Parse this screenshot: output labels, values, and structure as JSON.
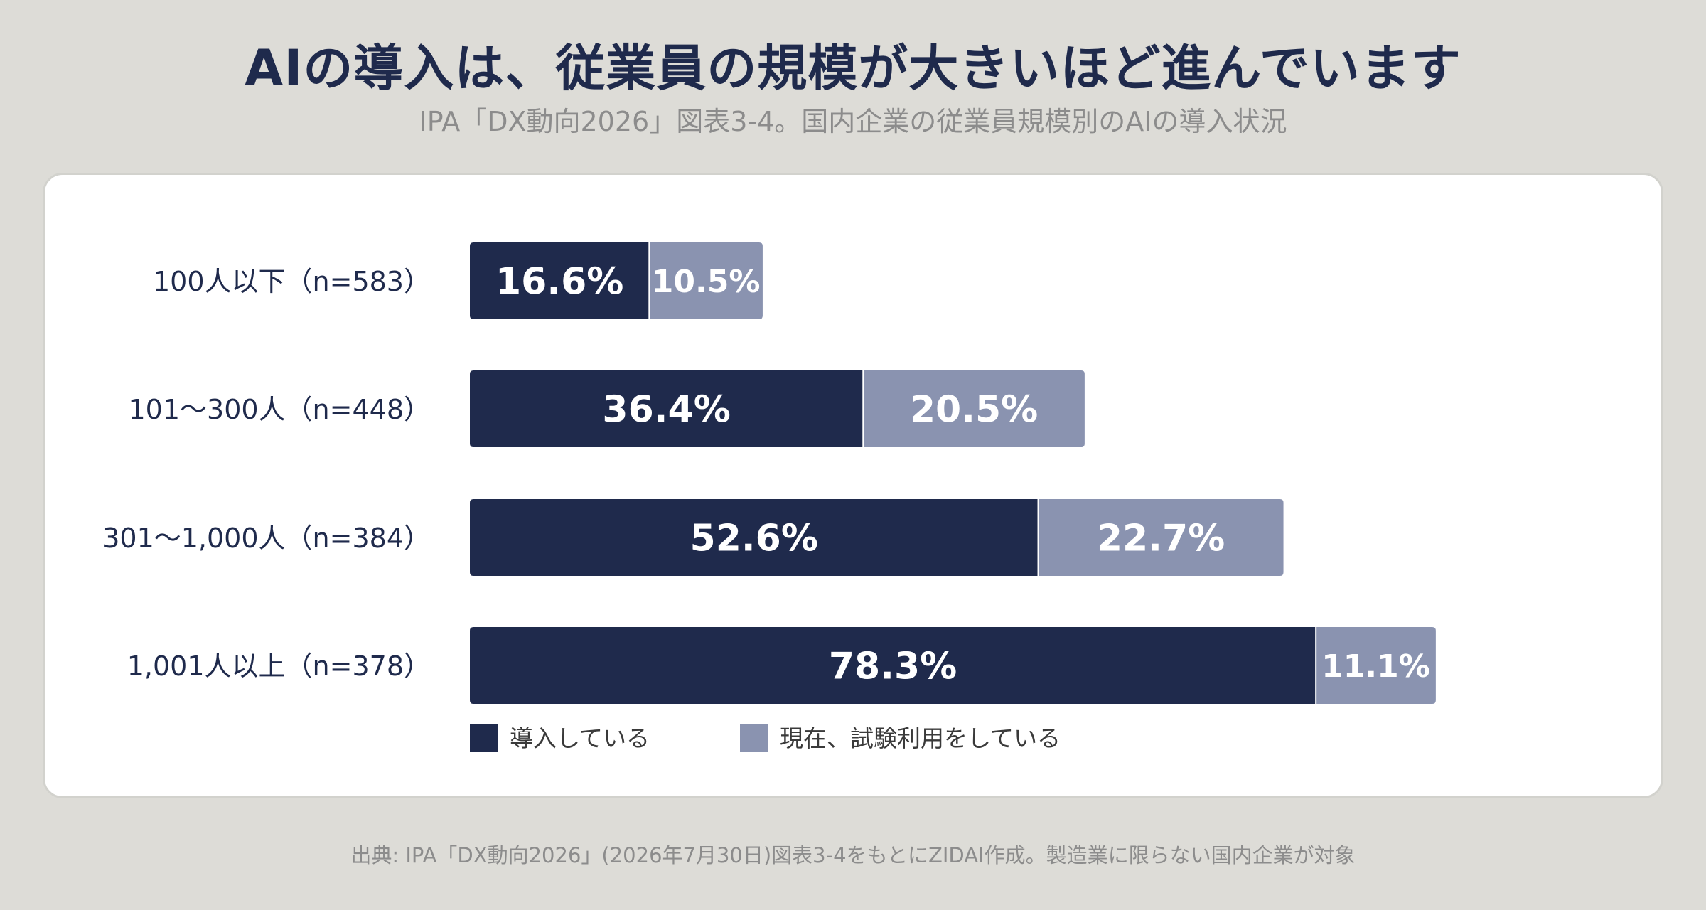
{
  "title": "AIの導入は、従業員の規模が大きいほど進んでいます",
  "subtitle": "IPA「DX動向2026」図表3-4。国内企業の従業員規模別のAIの導入状況",
  "source": "出典: IPA「DX動向2026」(2026年7月30日)図表3-4をもとにZIDAI作成。製造業に限らない国内企業が対象",
  "colors": {
    "background": "#dddcd7",
    "card": "#ffffff",
    "title": "#1f2a4c",
    "series_1": "#1f2a4c",
    "series_2": "#8a93b0"
  },
  "chart_data": {
    "type": "bar",
    "orientation": "horizontal",
    "stacked": true,
    "categories": [
      "100人以下（n=583）",
      "101〜300人（n=448）",
      "301〜1,000人（n=384）",
      "1,001人以上（n=378）"
    ],
    "series": [
      {
        "name": "導入している",
        "color": "#1f2a4c",
        "values": [
          16.6,
          36.4,
          52.6,
          78.3
        ],
        "labels": [
          "16.6%",
          "36.4%",
          "52.6%",
          "78.3%"
        ]
      },
      {
        "name": "現在、試験利用をしている",
        "color": "#8a93b0",
        "values": [
          10.5,
          20.5,
          22.7,
          11.1
        ],
        "labels": [
          "10.5%",
          "20.5%",
          "22.7%",
          "11.1%"
        ]
      }
    ],
    "xlim": [
      0,
      100
    ],
    "grid": false,
    "legend_position": "bottom-left"
  }
}
